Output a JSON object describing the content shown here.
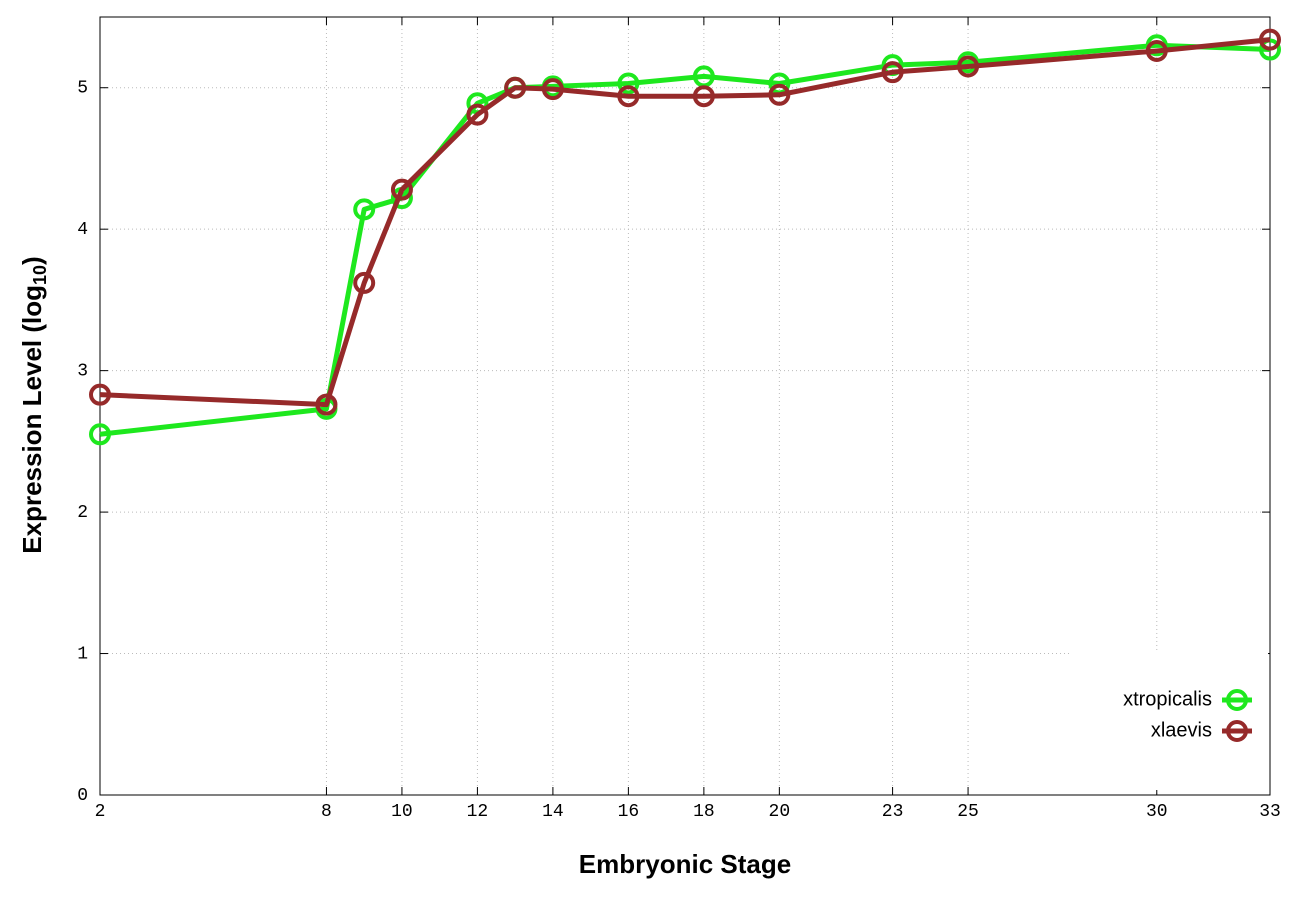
{
  "chart_data": {
    "type": "line",
    "x_label": "Embryonic Stage",
    "y_label": {
      "text": "Expression Level (log",
      "subscript": "10",
      "suffix": ")"
    },
    "x": [
      2,
      8,
      9,
      10,
      12,
      13,
      14,
      16,
      18,
      20,
      23,
      25,
      30,
      33
    ],
    "series": [
      {
        "name": "xtropicalis",
        "color": "#1ee81e",
        "values": [
          2.55,
          2.73,
          4.14,
          4.22,
          4.89,
          5.0,
          5.01,
          5.03,
          5.08,
          5.03,
          5.16,
          5.18,
          5.3,
          5.27
        ]
      },
      {
        "name": "xlaevis",
        "color": "#962a2a",
        "values": [
          2.83,
          2.76,
          3.62,
          4.28,
          4.81,
          5.0,
          4.99,
          4.94,
          4.94,
          4.95,
          5.11,
          5.15,
          5.26,
          5.34
        ]
      }
    ],
    "xlim": [
      2,
      33
    ],
    "xticks": [
      2,
      8,
      10,
      12,
      14,
      16,
      18,
      20,
      23,
      25,
      30,
      33
    ],
    "ylim": [
      0,
      5.5
    ],
    "yticks": [
      0,
      1,
      2,
      3,
      4,
      5
    ],
    "grid": true,
    "legend": "bottom-right"
  }
}
